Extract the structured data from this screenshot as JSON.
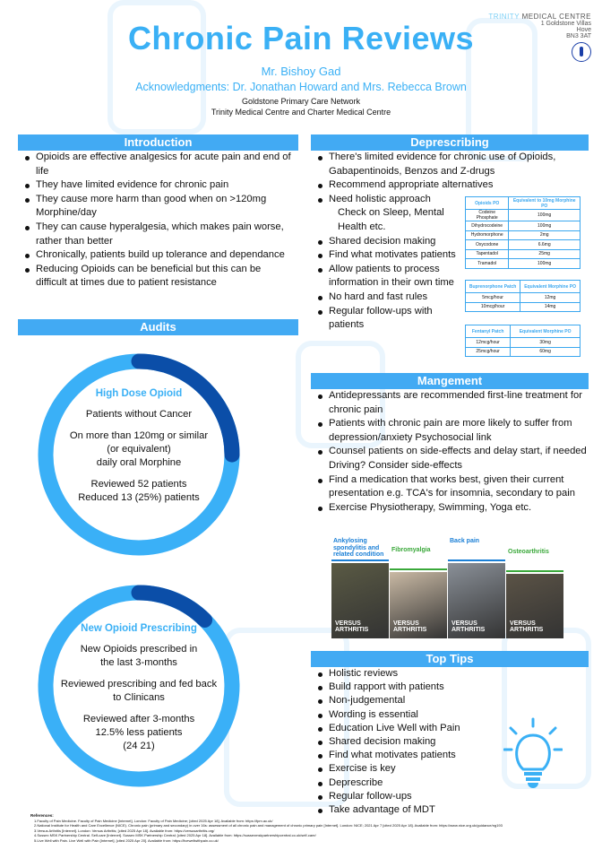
{
  "header": {
    "title": "Chronic Pain Reviews",
    "author": "Mr. Bishoy Gad",
    "acknowledgments": "Acknowledgments: Dr. Jonathan Howard and Mrs. Rebecca Brown",
    "network": "Goldstone Primary Care Network",
    "centres": "Trinity Medical Centre and Charter Medical Centre"
  },
  "logo": {
    "name_part1": "TRINITY",
    "name_part2": " MEDICAL CENTRE",
    "address": [
      "1 Goldstone Villas",
      "Hove",
      "BN3 3AT"
    ],
    "seal_text": "CHARTER MEDICAL CENTRE"
  },
  "introduction": {
    "heading": "Introduction",
    "bullets": [
      "Opioids are effective analgesics for acute pain and end of life",
      "They have limited evidence for chronic pain",
      "They cause more harm than good when on >120mg Morphine/day",
      "They can cause hyperalgesia, which makes pain worse, rather than better",
      "Chronically, patients build up tolerance and dependance",
      "Reducing Opioids can be beneficial but this can be difficult at times due to patient resistance"
    ]
  },
  "audits": {
    "heading": "Audits",
    "colors": {
      "track": "#3ab0f7",
      "progress": "#0b4ea8"
    },
    "items": [
      {
        "title": "High Dose Opioid",
        "progress_percent": 25,
        "lines": [
          "Patients without Cancer",
          "",
          "On more than 120mg or similar",
          "(or equivalent)",
          "daily oral Morphine",
          "",
          "Reviewed 52 patients",
          "Reduced 13 (25%) patients"
        ]
      },
      {
        "title": "New Opioid Prescribing",
        "progress_percent": 12.5,
        "lines": [
          "New Opioids prescribed in",
          "the last 3-months",
          "",
          "Reviewed prescribing and fed back",
          "to Clinicans",
          "",
          "Reviewed after 3-months",
          "12.5% less patients",
          "(24     21)"
        ]
      }
    ]
  },
  "deprescribing": {
    "heading": "Deprescribing",
    "bullets": [
      {
        "text": "There's limited evidence for chronic use of Opioids, Gabapentinoids, Benzos and Z-drugs"
      },
      {
        "text": "Recommend appropriate alternatives"
      },
      {
        "text": "Need holistic approach"
      },
      {
        "text": "Check on Sleep, Mental Health etc.",
        "indent": true
      },
      {
        "text": "Shared decision making"
      },
      {
        "text": "Find what motivates patients"
      },
      {
        "text": "Allow patients to process information in their own time"
      },
      {
        "text": "No hard and fast rules"
      },
      {
        "text": "Regular follow-ups with patients"
      }
    ],
    "tables": [
      {
        "headers": [
          "Opioids PO",
          "Equivalent to 10mg Morphine PO"
        ],
        "rows": [
          [
            "Codeine Phosphate",
            "100mg"
          ],
          [
            "Dihydrocodeine",
            "100mg"
          ],
          [
            "Hydromorphone",
            "2mg"
          ],
          [
            "Oxycodone",
            "6.6mg"
          ],
          [
            "Tapentadol",
            "25mg"
          ],
          [
            "Tramadol",
            "100mg"
          ]
        ]
      },
      {
        "headers": [
          "Buprenorphone Patch",
          "Equivalent Morphine PO"
        ],
        "rows": [
          [
            "5mcg/hour",
            "12mg"
          ],
          [
            "10mcg/hour",
            "14mg"
          ]
        ]
      },
      {
        "headers": [
          "Fentanyl Patch",
          "Equivalent Morphine PO"
        ],
        "rows": [
          [
            "12mcg/hour",
            "30mg"
          ],
          [
            "25mcg/hour",
            "60mg"
          ]
        ]
      }
    ]
  },
  "management": {
    "heading": "Mangement",
    "bullets": [
      "Antidepressants are recommended first-line treatment for chronic pain",
      "Patients with chronic pain are more likely to suffer from depression/anxiety      Psychosocial link",
      "Counsel patients on side-effects and delay start, if needed      Driving? Consider side-effects",
      "Find a medication that works best, given their current presentation      e.g. TCA's for insomnia, secondary to pain",
      "Exercise      Physiotherapy, Swimming, Yoga etc."
    ],
    "booklets": [
      {
        "title": "Ankylosing spondylitis and related condition",
        "color": "#1a7fd6",
        "brand": "VERSUS ARTHRITIS"
      },
      {
        "title": "Fibromyalgia",
        "color": "#3aa83a",
        "brand": "VERSUS ARTHRITIS"
      },
      {
        "title": "Back pain",
        "color": "#1a7fd6",
        "brand": "VERSUS ARTHRITIS"
      },
      {
        "title": "Osteoarthritis",
        "color": "#3aa83a",
        "brand": "VERSUS ARTHRITIS"
      }
    ]
  },
  "top_tips": {
    "heading": "Top Tips",
    "bullets": [
      "Holistic reviews",
      "Build rapport with patients",
      "Non-judgemental",
      "Wording is essential",
      "Education      Live Well with Pain",
      "Shared decision making",
      "Find what motivates patients",
      "Exercise is key",
      "Deprescribe",
      "Regular follow-ups",
      "Take advantage of MDT"
    ]
  },
  "references": {
    "heading": "References:",
    "items": [
      "1.Faculty of Pain Medicine. Faculty of Pain Medicine [Internet]. London: Faculty of Pain Medicine; [cited 2025 Apr 18]. Available from: https://fpm.ac.uk/",
      "2.National Institute for Health and Care Excellence (NICE). Chronic pain (primary and secondary) in over 16s: assessment of all chronic pain and management of chronic primary pain [Internet]. London: NICE; 2021 Apr 7 [cited 2025 Apr 18]. Available from: https://www.nice.org.uk/guidance/ng193",
      "3.Versus Arthritis [Internet]. London: Versus Arthritis; [cited 2025 Apr 18]. Available from: https://versusarthritis.org/",
      "4.Sussex MSK Partnership Central. Self-care [Internet]. Sussex MSK Partnership Central; [cited 2025 Apr 18]. Available from: https://sussexmskpartnershipcentral.co.uk/self-care/",
      "5.Live Well with Pain. Live Well with Pain [Internet]. [cited 2025 Apr 20]. Available from: https://livewellwithpain.co.uk/"
    ]
  }
}
